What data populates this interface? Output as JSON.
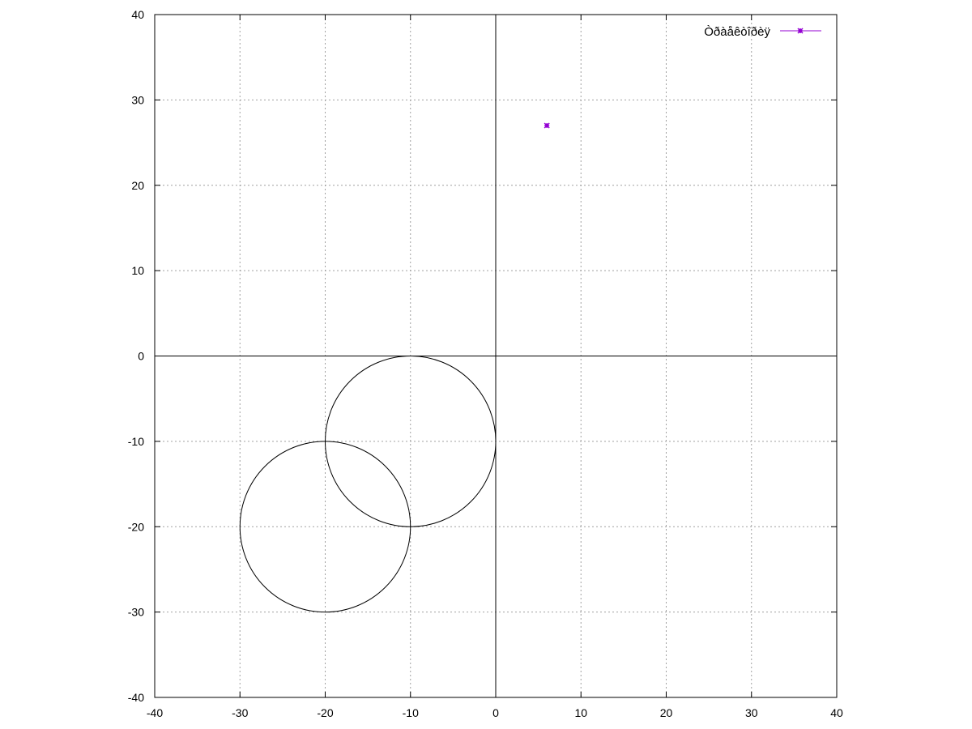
{
  "chart_data": {
    "type": "scatter",
    "title": "",
    "xlabel": "",
    "ylabel": "",
    "xlim": [
      -40,
      40
    ],
    "ylim": [
      -40,
      40
    ],
    "xticks": [
      -40,
      -30,
      -20,
      -10,
      0,
      10,
      20,
      30,
      40
    ],
    "yticks": [
      -40,
      -30,
      -20,
      -10,
      0,
      10,
      20,
      30,
      40
    ],
    "grid": true,
    "zero_axes": true,
    "legend": {
      "placement": "top-right",
      "entries": [
        "Òðàåêòîðèÿ"
      ]
    },
    "series": [
      {
        "name": "Òðàåêòîðèÿ",
        "color": "#9400d3",
        "points": [
          [
            6,
            27
          ]
        ]
      }
    ],
    "circles": [
      {
        "cx": -10,
        "cy": -10,
        "r": 10,
        "color": "#000000"
      },
      {
        "cx": -20,
        "cy": -20,
        "r": 10,
        "color": "#000000"
      }
    ]
  }
}
